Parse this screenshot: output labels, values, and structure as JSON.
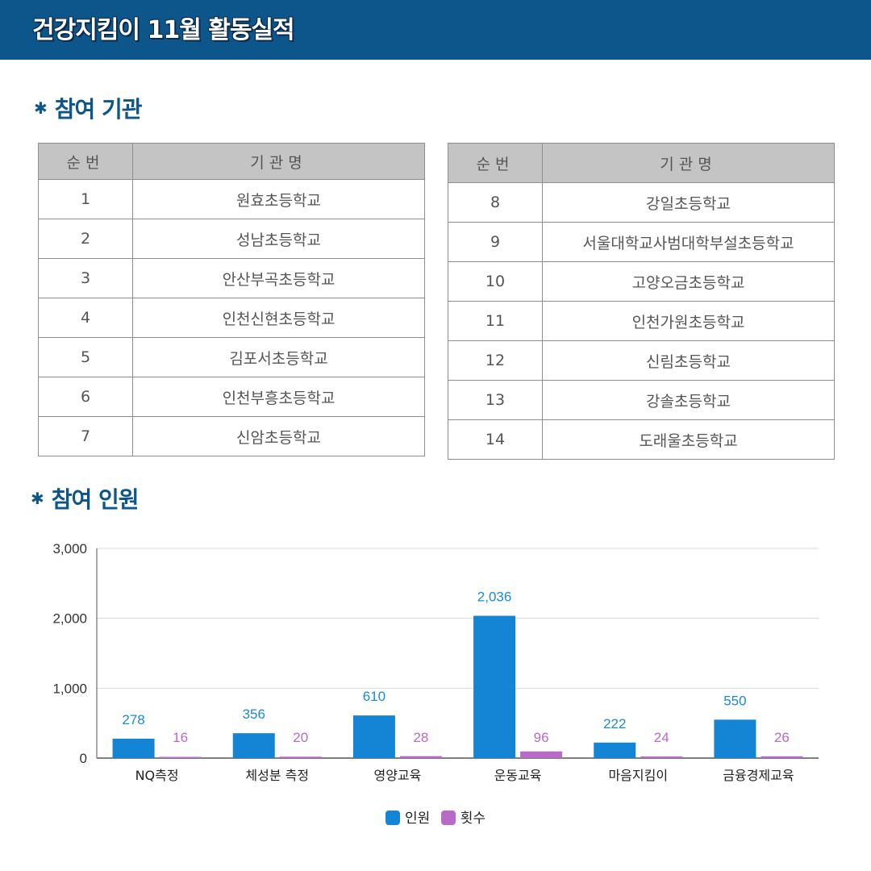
{
  "header": {
    "title": "건강지킴이 11월 활동실적"
  },
  "sections": {
    "institutions_heading": "참여 기관",
    "participants_heading": "참여 인원",
    "bullet_icon": "asterisk-icon"
  },
  "table_headers": {
    "no": "순번",
    "name": "기관명"
  },
  "institutions_left": [
    {
      "no": "1",
      "name": "원효초등학교"
    },
    {
      "no": "2",
      "name": "성남초등학교"
    },
    {
      "no": "3",
      "name": "안산부곡초등학교"
    },
    {
      "no": "4",
      "name": "인천신현초등학교"
    },
    {
      "no": "5",
      "name": "김포서초등학교"
    },
    {
      "no": "6",
      "name": "인천부흥초등학교"
    },
    {
      "no": "7",
      "name": "신암초등학교"
    }
  ],
  "institutions_right": [
    {
      "no": "8",
      "name": "강일초등학교"
    },
    {
      "no": "9",
      "name": "서울대학교사범대학부설초등학교"
    },
    {
      "no": "10",
      "name": "고양오금초등학교"
    },
    {
      "no": "11",
      "name": "인천가원초등학교"
    },
    {
      "no": "12",
      "name": "신림초등학교"
    },
    {
      "no": "13",
      "name": "강솔초등학교"
    },
    {
      "no": "14",
      "name": "도래울초등학교"
    }
  ],
  "colors": {
    "header_bg": "#0d568c",
    "series_people": "#1484d4",
    "series_count": "#b86ac8"
  },
  "chart_data": {
    "type": "bar",
    "categories": [
      "NQ측정",
      "체성분 측정",
      "영양교육",
      "운동교육",
      "마음지킴이",
      "금융경제교육"
    ],
    "series": [
      {
        "name": "인원",
        "values": [
          278,
          356,
          610,
          2036,
          222,
          550
        ],
        "labels": [
          "278",
          "356",
          "610",
          "2,036",
          "222",
          "550"
        ]
      },
      {
        "name": "횟수",
        "values": [
          16,
          20,
          28,
          96,
          24,
          26
        ],
        "labels": [
          "16",
          "20",
          "28",
          "96",
          "24",
          "26"
        ]
      }
    ],
    "yticks": [
      "3,000",
      "2,000",
      "1,000",
      "0"
    ],
    "ylim": [
      0,
      3000
    ],
    "grid": true,
    "legend_position": "bottom-center"
  }
}
